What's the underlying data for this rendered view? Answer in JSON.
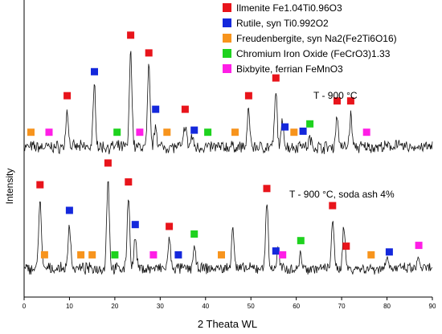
{
  "chart_data": {
    "type": "line",
    "title": "",
    "xlabel": "2 Theata WL",
    "ylabel": "Intensity",
    "xlim": [
      0,
      90
    ],
    "xticks": [
      0,
      10,
      20,
      30,
      40,
      50,
      60,
      70,
      80,
      90
    ],
    "grid": false,
    "legend_placement": "top-right",
    "legend": [
      {
        "key": "ilmenite",
        "label": "Ilmenite Fe1.04Ti0.96O3",
        "color": "#e8141b"
      },
      {
        "key": "rutile",
        "label": "Rutile, syn Ti0.992O2",
        "color": "#1428dc"
      },
      {
        "key": "freudenbergite",
        "label": "Freudenbergite, syn Na2(Fe2Ti6O16)",
        "color": "#f7941d"
      },
      {
        "key": "chromium",
        "label": "Chromium Iron Oxide (FeCrO3)1.33",
        "color": "#1ed21e"
      },
      {
        "key": "bixbyite",
        "label": "Bixbyite, ferrian FeMnO3",
        "color": "#ff1ee6"
      }
    ],
    "series": [
      {
        "name": "T - 900 °C",
        "peaks": [
          {
            "x": 9.5,
            "height": 0.35
          },
          {
            "x": 15.5,
            "height": 0.58
          },
          {
            "x": 23.5,
            "height": 0.93
          },
          {
            "x": 27.5,
            "height": 0.76
          },
          {
            "x": 29.0,
            "height": 0.22
          },
          {
            "x": 35.5,
            "height": 0.22
          },
          {
            "x": 37.0,
            "height": 0.1
          },
          {
            "x": 49.5,
            "height": 0.35
          },
          {
            "x": 55.5,
            "height": 0.52
          },
          {
            "x": 57.0,
            "height": 0.25
          },
          {
            "x": 61.0,
            "height": 0.05
          },
          {
            "x": 63.0,
            "height": 0.08
          },
          {
            "x": 69.0,
            "height": 0.3
          },
          {
            "x": 72.0,
            "height": 0.3
          },
          {
            "x": 82.0,
            "height": 0.05
          }
        ],
        "markers": [
          {
            "phase": "freudenbergite",
            "x": 1.5
          },
          {
            "phase": "bixbyite",
            "x": 5.5
          },
          {
            "phase": "ilmenite",
            "x": 9.5
          },
          {
            "phase": "rutile",
            "x": 15.5
          },
          {
            "phase": "chromium",
            "x": 20.5
          },
          {
            "phase": "ilmenite",
            "x": 23.5
          },
          {
            "phase": "bixbyite",
            "x": 25.5
          },
          {
            "phase": "ilmenite",
            "x": 27.5
          },
          {
            "phase": "rutile",
            "x": 29.0
          },
          {
            "phase": "freudenbergite",
            "x": 31.5
          },
          {
            "phase": "ilmenite",
            "x": 35.5
          },
          {
            "phase": "rutile",
            "x": 37.5
          },
          {
            "phase": "chromium",
            "x": 40.5
          },
          {
            "phase": "freudenbergite",
            "x": 46.5
          },
          {
            "phase": "ilmenite",
            "x": 49.5
          },
          {
            "phase": "ilmenite",
            "x": 55.5
          },
          {
            "phase": "rutile",
            "x": 57.5
          },
          {
            "phase": "freudenbergite",
            "x": 59.5
          },
          {
            "phase": "rutile",
            "x": 61.5
          },
          {
            "phase": "chromium",
            "x": 63.0
          },
          {
            "phase": "ilmenite",
            "x": 69.0
          },
          {
            "phase": "ilmenite",
            "x": 72.0
          },
          {
            "phase": "bixbyite",
            "x": 75.5
          }
        ]
      },
      {
        "name": "T - 900 °C, soda ash 4%",
        "peaks": [
          {
            "x": 3.5,
            "height": 0.74
          },
          {
            "x": 10.0,
            "height": 0.47
          },
          {
            "x": 18.5,
            "height": 0.97
          },
          {
            "x": 23.0,
            "height": 0.77
          },
          {
            "x": 24.5,
            "height": 0.32
          },
          {
            "x": 32.0,
            "height": 0.3
          },
          {
            "x": 37.5,
            "height": 0.22
          },
          {
            "x": 46.0,
            "height": 0.45
          },
          {
            "x": 53.5,
            "height": 0.7
          },
          {
            "x": 56.0,
            "height": 0.2
          },
          {
            "x": 61.0,
            "height": 0.15
          },
          {
            "x": 68.0,
            "height": 0.52
          },
          {
            "x": 70.5,
            "height": 0.45
          },
          {
            "x": 80.0,
            "height": 0.15
          },
          {
            "x": 87.0,
            "height": 0.1
          }
        ],
        "markers": [
          {
            "phase": "ilmenite",
            "x": 3.5
          },
          {
            "phase": "freudenbergite",
            "x": 4.5
          },
          {
            "phase": "rutile",
            "x": 10.0
          },
          {
            "phase": "freudenbergite",
            "x": 12.5
          },
          {
            "phase": "freudenbergite",
            "x": 15.0
          },
          {
            "phase": "ilmenite",
            "x": 18.5
          },
          {
            "phase": "chromium",
            "x": 20.0
          },
          {
            "phase": "ilmenite",
            "x": 23.0
          },
          {
            "phase": "rutile",
            "x": 24.5
          },
          {
            "phase": "bixbyite",
            "x": 28.5
          },
          {
            "phase": "ilmenite",
            "x": 32.0
          },
          {
            "phase": "rutile",
            "x": 34.0
          },
          {
            "phase": "chromium",
            "x": 37.5
          },
          {
            "phase": "freudenbergite",
            "x": 43.5
          },
          {
            "phase": "ilmenite",
            "x": 53.5
          },
          {
            "phase": "rutile",
            "x": 55.5
          },
          {
            "phase": "bixbyite",
            "x": 57.0
          },
          {
            "phase": "chromium",
            "x": 61.0
          },
          {
            "phase": "ilmenite",
            "x": 68.0
          },
          {
            "phase": "ilmenite",
            "x": 71.0
          },
          {
            "phase": "freudenbergite",
            "x": 76.5
          },
          {
            "phase": "rutile",
            "x": 80.5
          },
          {
            "phase": "bixbyite",
            "x": 87.0
          }
        ]
      }
    ]
  }
}
